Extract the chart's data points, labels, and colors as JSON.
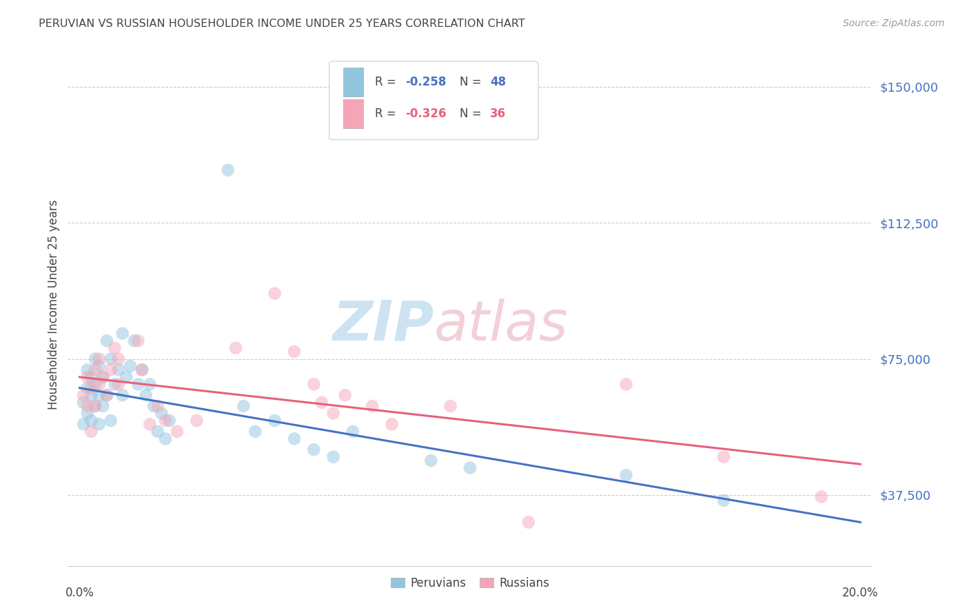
{
  "title": "PERUVIAN VS RUSSIAN HOUSEHOLDER INCOME UNDER 25 YEARS CORRELATION CHART",
  "source": "Source: ZipAtlas.com",
  "ylabel": "Householder Income Under 25 years",
  "yticks": [
    37500,
    75000,
    112500,
    150000
  ],
  "ytick_labels": [
    "$37,500",
    "$75,000",
    "$112,500",
    "$150,000"
  ],
  "watermark_text": "ZIPatlas",
  "blue_color": "#92C5DE",
  "pink_color": "#F4A6B8",
  "blue_line_color": "#4472C4",
  "pink_line_color": "#E8607A",
  "axis_label_color": "#4472C4",
  "peruvian_points": [
    [
      0.001,
      63000
    ],
    [
      0.001,
      57000
    ],
    [
      0.002,
      67000
    ],
    [
      0.002,
      60000
    ],
    [
      0.002,
      72000
    ],
    [
      0.003,
      65000
    ],
    [
      0.003,
      58000
    ],
    [
      0.003,
      70000
    ],
    [
      0.004,
      75000
    ],
    [
      0.004,
      62000
    ],
    [
      0.004,
      68000
    ],
    [
      0.005,
      73000
    ],
    [
      0.005,
      57000
    ],
    [
      0.005,
      65000
    ],
    [
      0.006,
      70000
    ],
    [
      0.006,
      62000
    ],
    [
      0.007,
      80000
    ],
    [
      0.007,
      65000
    ],
    [
      0.008,
      75000
    ],
    [
      0.008,
      58000
    ],
    [
      0.009,
      68000
    ],
    [
      0.01,
      72000
    ],
    [
      0.011,
      82000
    ],
    [
      0.011,
      65000
    ],
    [
      0.012,
      70000
    ],
    [
      0.013,
      73000
    ],
    [
      0.014,
      80000
    ],
    [
      0.015,
      68000
    ],
    [
      0.016,
      72000
    ],
    [
      0.017,
      65000
    ],
    [
      0.018,
      68000
    ],
    [
      0.019,
      62000
    ],
    [
      0.02,
      55000
    ],
    [
      0.021,
      60000
    ],
    [
      0.022,
      53000
    ],
    [
      0.023,
      58000
    ],
    [
      0.038,
      127000
    ],
    [
      0.042,
      62000
    ],
    [
      0.045,
      55000
    ],
    [
      0.05,
      58000
    ],
    [
      0.055,
      53000
    ],
    [
      0.06,
      50000
    ],
    [
      0.065,
      48000
    ],
    [
      0.07,
      55000
    ],
    [
      0.09,
      47000
    ],
    [
      0.1,
      45000
    ],
    [
      0.14,
      43000
    ],
    [
      0.165,
      36000
    ]
  ],
  "russian_points": [
    [
      0.001,
      65000
    ],
    [
      0.002,
      62000
    ],
    [
      0.002,
      70000
    ],
    [
      0.003,
      67000
    ],
    [
      0.003,
      55000
    ],
    [
      0.004,
      72000
    ],
    [
      0.004,
      62000
    ],
    [
      0.005,
      68000
    ],
    [
      0.005,
      75000
    ],
    [
      0.006,
      70000
    ],
    [
      0.007,
      65000
    ],
    [
      0.008,
      72000
    ],
    [
      0.009,
      78000
    ],
    [
      0.01,
      68000
    ],
    [
      0.01,
      75000
    ],
    [
      0.015,
      80000
    ],
    [
      0.016,
      72000
    ],
    [
      0.018,
      57000
    ],
    [
      0.02,
      62000
    ],
    [
      0.022,
      58000
    ],
    [
      0.025,
      55000
    ],
    [
      0.03,
      58000
    ],
    [
      0.04,
      78000
    ],
    [
      0.05,
      93000
    ],
    [
      0.055,
      77000
    ],
    [
      0.06,
      68000
    ],
    [
      0.062,
      63000
    ],
    [
      0.065,
      60000
    ],
    [
      0.068,
      65000
    ],
    [
      0.075,
      62000
    ],
    [
      0.08,
      57000
    ],
    [
      0.095,
      62000
    ],
    [
      0.115,
      30000
    ],
    [
      0.14,
      68000
    ],
    [
      0.165,
      48000
    ],
    [
      0.19,
      37000
    ]
  ],
  "xlim": [
    -0.003,
    0.203
  ],
  "ylim": [
    18000,
    162000
  ],
  "bg_color": "#ffffff",
  "grid_color": "#cccccc",
  "title_color": "#444444",
  "marker_size": 180,
  "marker_alpha": 0.5,
  "line_width": 2.2
}
